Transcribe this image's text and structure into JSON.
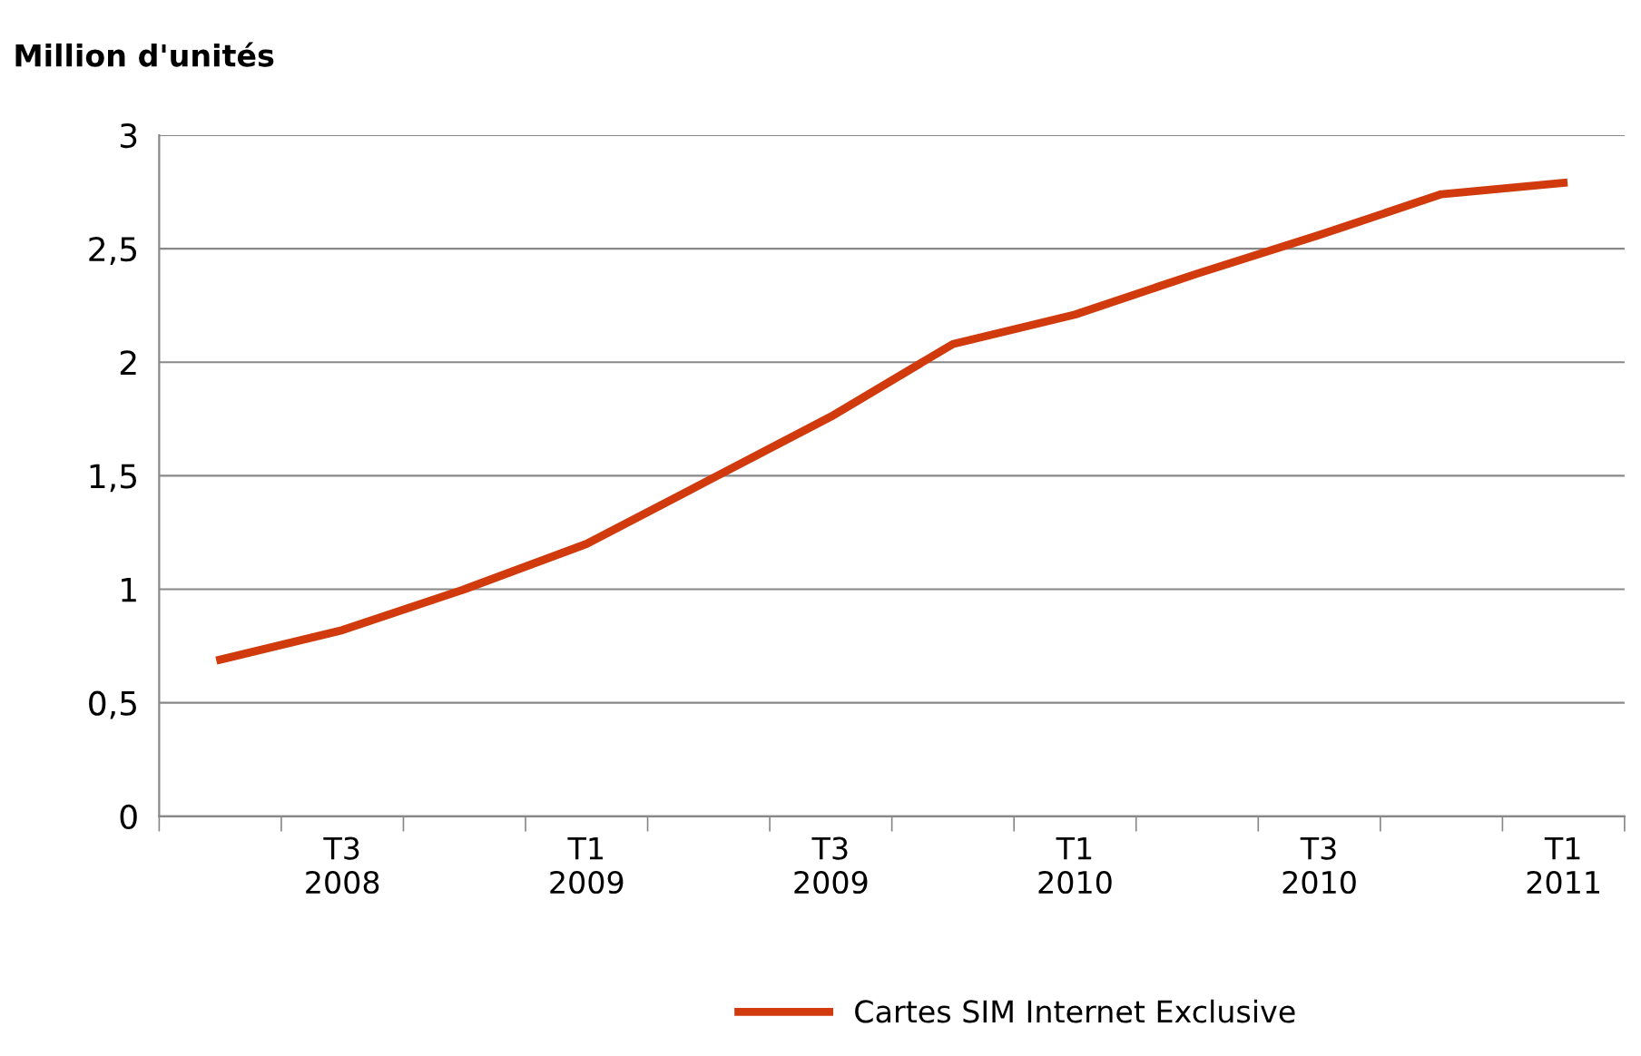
{
  "chart_data": {
    "type": "line",
    "ylabel": "Million d'unités",
    "categories": [
      null,
      "T3\n2008",
      null,
      "T1\n2009",
      null,
      "T3\n2009",
      null,
      "T1\n2010",
      null,
      "T3\n2010",
      null,
      "T1\n2011"
    ],
    "series": [
      {
        "name": "Cartes SIM Internet Exclusive",
        "color": "#d03a0c",
        "values": [
          0.69,
          0.82,
          1.0,
          1.2,
          1.48,
          1.76,
          2.08,
          2.21,
          2.39,
          2.56,
          2.74,
          2.79
        ]
      }
    ],
    "ylim": [
      0,
      3
    ],
    "yticks": [
      0,
      {
        "value": 0.5,
        "label": "0,5"
      },
      1,
      {
        "value": 1.5,
        "label": "1,5"
      },
      2,
      {
        "value": 2.5,
        "label": "2,5"
      },
      3
    ],
    "grid": "y",
    "legend": "bottom",
    "marker": "none",
    "line_style": "solid"
  }
}
